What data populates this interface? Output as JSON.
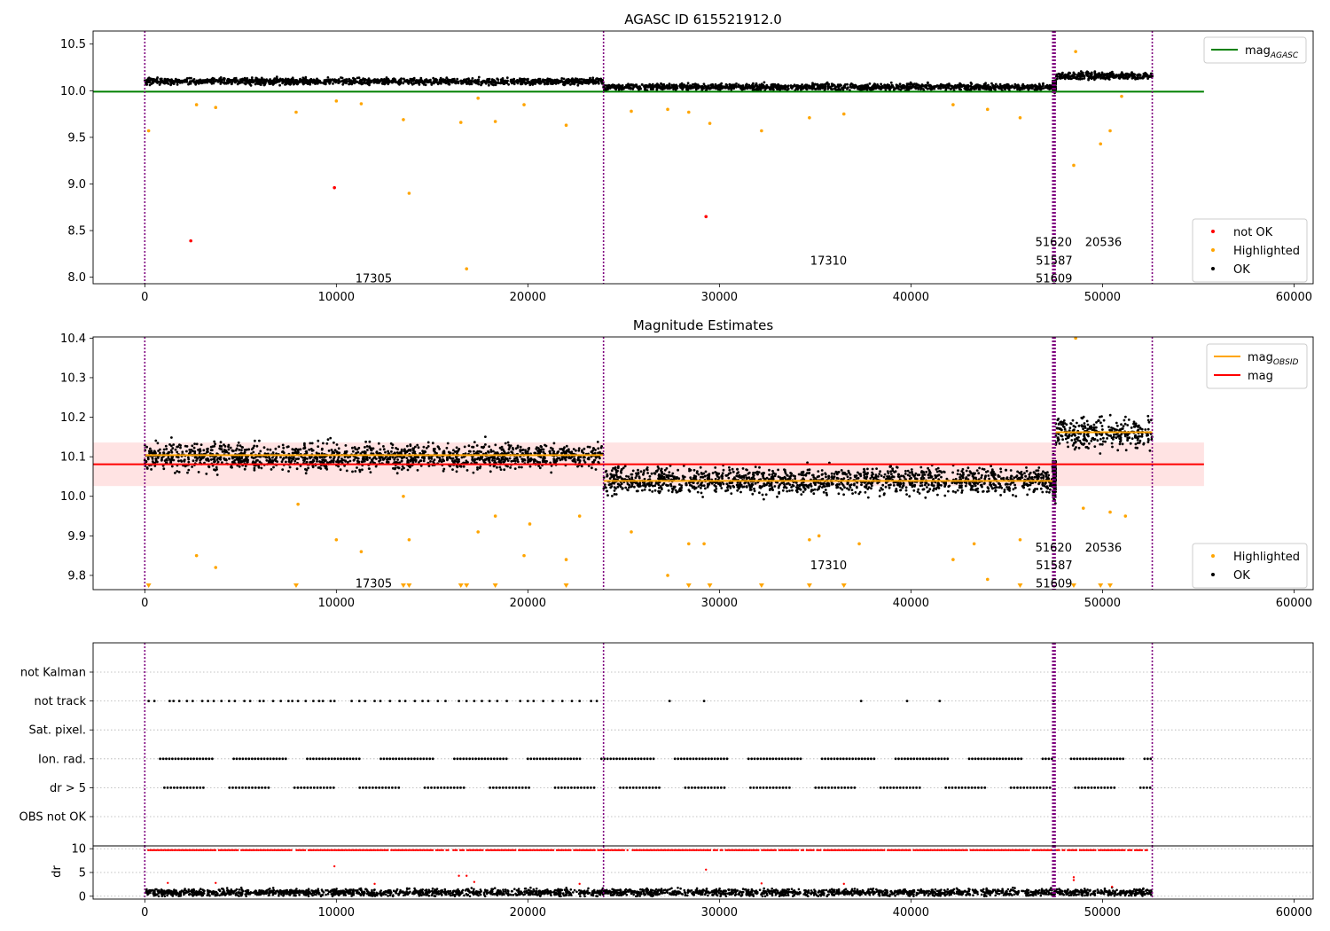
{
  "figure": {
    "background": "#ffffff"
  },
  "colors": {
    "ok": "#000000",
    "highlighted": "#ffa500",
    "not_ok": "#ff0000",
    "agasc_line": "#008000",
    "mag_line": "#ff0000",
    "obsid_line": "#ffa500",
    "obsid_sep": "#800080",
    "mag_band": "#ffc0c0"
  },
  "chart_data": [
    {
      "type": "scatter",
      "title": "AGASC ID 615521912.0",
      "xlim": [
        -2700,
        61000
      ],
      "ylim": [
        7.93,
        10.64
      ],
      "xticks": [
        0,
        10000,
        20000,
        30000,
        40000,
        50000,
        60000
      ],
      "xtick_labels": [
        "0",
        "10000",
        "20000",
        "30000",
        "40000",
        "50000",
        "60000"
      ],
      "yticks": [
        8.0,
        8.5,
        9.0,
        9.5,
        10.0,
        10.5
      ],
      "ytick_labels": [
        "8.0",
        "8.5",
        "9.0",
        "9.5",
        "10.0",
        "10.5"
      ],
      "obsid_boundaries": [
        0,
        23950,
        47400,
        47470,
        47530,
        52600
      ],
      "segments": [
        {
          "obsid": "17305",
          "x": [
            0,
            23950
          ],
          "center": 10.1,
          "spread": 0.03
        },
        {
          "obsid": "17310",
          "x": [
            23950,
            47400
          ],
          "center": 10.04,
          "spread": 0.03
        },
        {
          "obsid": "51620",
          "x": [
            47400,
            47470
          ],
          "center": 10.05,
          "spread": 0.05
        },
        {
          "obsid": "51587",
          "x": [
            47470,
            47530
          ],
          "center": 10.05,
          "spread": 0.05
        },
        {
          "obsid": "51609",
          "x": [
            47530,
            47560
          ],
          "center": 10.05,
          "spread": 0.05
        },
        {
          "obsid": "20536",
          "x": [
            47560,
            52600
          ],
          "center": 10.16,
          "spread": 0.035
        }
      ],
      "series": [
        {
          "name": "not OK",
          "color": "#ff0000",
          "points": [
            [
              2400,
              8.39
            ],
            [
              9900,
              8.96
            ],
            [
              29300,
              8.65
            ]
          ]
        },
        {
          "name": "Highlighted",
          "color": "#ffa500",
          "points": [
            [
              200,
              9.57
            ],
            [
              2700,
              9.85
            ],
            [
              3700,
              9.82
            ],
            [
              7900,
              9.77
            ],
            [
              10000,
              9.89
            ],
            [
              11300,
              9.86
            ],
            [
              13500,
              9.69
            ],
            [
              13800,
              8.9
            ],
            [
              16500,
              9.66
            ],
            [
              16800,
              8.09
            ],
            [
              17400,
              9.92
            ],
            [
              18300,
              9.67
            ],
            [
              19800,
              9.85
            ],
            [
              22000,
              9.63
            ],
            [
              25400,
              9.78
            ],
            [
              27300,
              9.8
            ],
            [
              28400,
              9.77
            ],
            [
              29500,
              9.65
            ],
            [
              32200,
              9.57
            ],
            [
              34700,
              9.71
            ],
            [
              36500,
              9.75
            ],
            [
              42200,
              9.85
            ],
            [
              44000,
              9.8
            ],
            [
              45700,
              9.71
            ],
            [
              48500,
              9.2
            ],
            [
              48600,
              10.42
            ],
            [
              49900,
              9.43
            ],
            [
              50400,
              9.57
            ],
            [
              51000,
              9.94
            ]
          ]
        },
        {
          "name": "OK",
          "color": "#000000",
          "points": []
        }
      ],
      "reference_lines": [
        {
          "name": "mag_AGASC",
          "y": 9.99,
          "x": [
            -2700,
            55300
          ],
          "color": "#008000"
        }
      ],
      "obsid_labels": [
        {
          "text": "17305",
          "x": 11950,
          "y": 7.99
        },
        {
          "text": "17310",
          "x": 35700,
          "y": 8.18
        },
        {
          "text": "51620",
          "x": 47450,
          "y": 8.38
        },
        {
          "text": "51587",
          "x": 47480,
          "y": 8.18
        },
        {
          "text": "51609",
          "x": 47470,
          "y": 7.99
        },
        {
          "text": "20536",
          "x": 50050,
          "y": 8.38
        }
      ],
      "legends": [
        {
          "entries": [
            {
              "label": "mag",
              "sub": "AGASC",
              "kind": "line",
              "color": "#008000"
            }
          ]
        },
        {
          "entries": [
            {
              "label": "not OK",
              "kind": "dot",
              "color": "#ff0000"
            },
            {
              "label": "Highlighted",
              "kind": "dot",
              "color": "#ffa500"
            },
            {
              "label": "OK",
              "kind": "dot",
              "color": "#000000"
            }
          ]
        }
      ]
    },
    {
      "type": "scatter",
      "title": "Magnitude Estimates",
      "xlim": [
        -2700,
        61000
      ],
      "ylim": [
        9.764,
        10.403
      ],
      "xticks": [
        0,
        10000,
        20000,
        30000,
        40000,
        50000,
        60000
      ],
      "xtick_labels": [
        "0",
        "10000",
        "20000",
        "30000",
        "40000",
        "50000",
        "60000"
      ],
      "yticks": [
        9.8,
        9.9,
        10.0,
        10.1,
        10.2,
        10.3,
        10.4
      ],
      "ytick_labels": [
        "9.8",
        "9.9",
        "10.0",
        "10.1",
        "10.2",
        "10.3",
        "10.4"
      ],
      "obsid_boundaries": [
        0,
        23950,
        47400,
        47470,
        47530,
        52600
      ],
      "segments": [
        {
          "obsid": "17305",
          "x": [
            0,
            23950
          ],
          "center": 10.1,
          "spread": 0.03
        },
        {
          "obsid": "17310",
          "x": [
            23950,
            47400
          ],
          "center": 10.04,
          "spread": 0.03
        },
        {
          "obsid": "51620",
          "x": [
            47400,
            47470
          ],
          "center": 10.05,
          "spread": 0.05
        },
        {
          "obsid": "51587",
          "x": [
            47470,
            47530
          ],
          "center": 10.05,
          "spread": 0.05
        },
        {
          "obsid": "51609",
          "x": [
            47530,
            47560
          ],
          "center": 10.05,
          "spread": 0.05
        },
        {
          "obsid": "20536",
          "x": [
            47560,
            52600
          ],
          "center": 10.16,
          "spread": 0.035
        }
      ],
      "mag_obsid": [
        {
          "obsid": "17305",
          "x": [
            0,
            23950
          ],
          "y": 10.104
        },
        {
          "obsid": "17310",
          "x": [
            23950,
            47400
          ],
          "y": 10.039
        },
        {
          "obsid": "20536",
          "x": [
            47560,
            52600
          ],
          "y": 10.162
        }
      ],
      "mag": {
        "y": 10.081,
        "band": [
          10.026,
          10.136
        ],
        "x": [
          -2700,
          55300
        ]
      },
      "series": [
        {
          "name": "Highlighted",
          "color": "#ffa500",
          "points": [
            [
              2700,
              9.85
            ],
            [
              3700,
              9.82
            ],
            [
              8000,
              9.98
            ],
            [
              10000,
              9.89
            ],
            [
              11300,
              9.86
            ],
            [
              13500,
              10.0
            ],
            [
              13800,
              9.89
            ],
            [
              17400,
              9.91
            ],
            [
              18300,
              9.95
            ],
            [
              19800,
              9.85
            ],
            [
              20100,
              9.93
            ],
            [
              22000,
              9.84
            ],
            [
              22700,
              9.95
            ],
            [
              25400,
              9.91
            ],
            [
              27300,
              9.8
            ],
            [
              28400,
              9.88
            ],
            [
              29200,
              9.88
            ],
            [
              34700,
              9.89
            ],
            [
              35200,
              9.9
            ],
            [
              37300,
              9.88
            ],
            [
              42200,
              9.84
            ],
            [
              43300,
              9.88
            ],
            [
              44000,
              9.79
            ],
            [
              45700,
              9.89
            ],
            [
              48600,
              10.4
            ],
            [
              49000,
              9.97
            ],
            [
              50400,
              9.96
            ],
            [
              51200,
              9.95
            ]
          ]
        },
        {
          "name": "OK",
          "color": "#000000",
          "points": []
        }
      ],
      "markers_below": [
        200,
        7900,
        13500,
        13800,
        16500,
        16800,
        18300,
        22000,
        28400,
        29500,
        32200,
        34700,
        36500,
        45700,
        48500,
        49900,
        50400
      ],
      "obsid_labels": [
        {
          "text": "17305",
          "x": 11950,
          "y": 9.781
        },
        {
          "text": "17310",
          "x": 35700,
          "y": 9.827
        },
        {
          "text": "51620",
          "x": 47450,
          "y": 9.872
        },
        {
          "text": "51587",
          "x": 47480,
          "y": 9.827
        },
        {
          "text": "51609",
          "x": 47470,
          "y": 9.781
        },
        {
          "text": "20536",
          "x": 50050,
          "y": 9.872
        }
      ],
      "legends": [
        {
          "entries": [
            {
              "label": "mag",
              "sub": "OBSID",
              "kind": "line",
              "color": "#ffa500"
            },
            {
              "label": "mag",
              "kind": "line",
              "color": "#ff0000"
            }
          ]
        },
        {
          "entries": [
            {
              "label": "Highlighted",
              "kind": "dot",
              "color": "#ffa500"
            },
            {
              "label": "OK",
              "kind": "dot",
              "color": "#000000"
            }
          ]
        }
      ]
    },
    {
      "type": "scatter",
      "title": "",
      "xlim": [
        -2700,
        61000
      ],
      "categories": [
        "not Kalman",
        "not track",
        "Sat. pixel.",
        "Ion. rad.",
        "dr > 5",
        "OBS not OK"
      ],
      "flags": [
        {
          "category": "not Kalman",
          "x": []
        },
        {
          "category": "not track",
          "x": [
            200,
            500,
            1300,
            1500,
            1800,
            2200,
            2500,
            3000,
            3300,
            3600,
            4000,
            4400,
            4700,
            5200,
            5500,
            6000,
            6200,
            6700,
            7100,
            7500,
            7700,
            8000,
            8400,
            8800,
            9100,
            9300,
            9700,
            9900,
            10800,
            11200,
            11500,
            12000,
            12300,
            12800,
            13300,
            13600,
            14100,
            14500,
            14800,
            15300,
            15700,
            16400,
            16800,
            17200,
            17600,
            18000,
            18400,
            18900,
            19600,
            20000,
            20300,
            20800,
            21300,
            21800,
            22300,
            22700,
            23300,
            23600,
            27400,
            29200,
            37400,
            39800,
            41500,
            47450
          ]
        },
        {
          "category": "Sat. pixel.",
          "x": []
        },
        {
          "category": "Ion. rad.",
          "ranges": [
            [
              0,
              47400
            ],
            [
              47560,
              52600
            ]
          ],
          "step": 160,
          "gap_every": 24,
          "gap_len": 6
        },
        {
          "category": "dr > 5",
          "ranges": [
            [
              0,
              47400
            ],
            [
              47560,
              52600
            ]
          ],
          "step": 170,
          "gap_every": 20,
          "gap_len": 7
        },
        {
          "category": "OBS not OK",
          "x": []
        }
      ],
      "obsid_boundaries": [
        0,
        23950,
        47400,
        47470,
        47530,
        52600
      ]
    },
    {
      "type": "scatter",
      "title": "",
      "xlim": [
        -2700,
        61000
      ],
      "ylim": [
        -0.6,
        10.6
      ],
      "yticks": [
        0,
        5,
        10
      ],
      "ytick_labels": [
        "0",
        "5",
        "10"
      ],
      "xticks": [
        0,
        10000,
        20000,
        30000,
        40000,
        50000,
        60000
      ],
      "xtick_labels": [
        "0",
        "10000",
        "20000",
        "30000",
        "40000",
        "50000",
        "60000"
      ],
      "ylabel": "dr",
      "dr_ok": {
        "x": [
          0,
          52600
        ],
        "center": 0.8,
        "spread": 0.6
      },
      "dr_capped": {
        "y": 9.7,
        "ranges": [
          [
            0,
            47400
          ],
          [
            47560,
            52600
          ]
        ],
        "step": 90
      },
      "dr_outliers": [
        [
          1200,
          2.8
        ],
        [
          3700,
          2.8
        ],
        [
          9900,
          6.3
        ],
        [
          12000,
          2.6
        ],
        [
          16400,
          4.3
        ],
        [
          16800,
          4.3
        ],
        [
          17200,
          3.0
        ],
        [
          22700,
          2.6
        ],
        [
          29300,
          5.6
        ],
        [
          32200,
          2.7
        ],
        [
          36500,
          2.6
        ],
        [
          48500,
          4.0
        ],
        [
          48500,
          3.4
        ],
        [
          50500,
          2.0
        ]
      ],
      "obsid_boundaries": [
        0,
        23950,
        47400,
        47470,
        47530,
        52600
      ]
    }
  ]
}
